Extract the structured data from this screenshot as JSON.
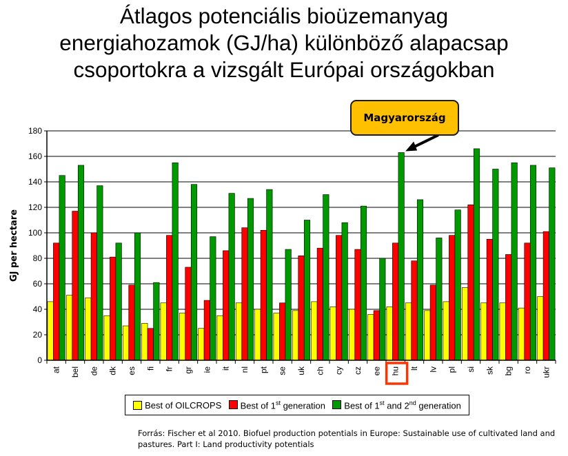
{
  "title_lines": [
    "Átlagos potenciális bioüzemanyag",
    "energiahozamok (GJ/ha) különböző alapacsap",
    "csoportokra a vizsgált Európai országokban"
  ],
  "callout": {
    "label": "Magyarország"
  },
  "source": "Forrás: Fischer et al 2010. Biofuel production potentials in Europe: Sustainable use of cultivated land and pastures. Part I: Land productivity potentials",
  "colors": {
    "oilcrops": "#ffff00",
    "first_gen": "#ff0000",
    "first_second_gen": "#009900",
    "highlight": "#ff3300",
    "callout_fill": "#ffc000"
  },
  "legend": {
    "oilcrops": "Best of OILCROPS",
    "first_gen_prefix": "Best of 1",
    "first_gen_sup": "st",
    "first_gen_suffix": " generation",
    "second_gen_prefix": "Best of 1",
    "second_gen_sup1": "st",
    "second_gen_mid": " and 2",
    "second_gen_sup2": "nd",
    "second_gen_suffix": " generation"
  },
  "chart_data": {
    "type": "bar",
    "title": "Átlagos potenciális bioüzemanyag energiahozamok (GJ/ha) különböző alapacsap csoportokra a vizsgált Európai országokban",
    "xlabel": "",
    "ylabel": "GJ per hectare",
    "ylim": [
      0,
      180
    ],
    "yticks": [
      0,
      20,
      40,
      60,
      80,
      100,
      120,
      140,
      160,
      180
    ],
    "grid": true,
    "legend_position": "bottom",
    "highlight_category": "hu",
    "categories": [
      "at",
      "bel",
      "de",
      "dk",
      "es",
      "fi",
      "fr",
      "gr",
      "ie",
      "it",
      "nl",
      "pt",
      "se",
      "uk",
      "ch",
      "cy",
      "cz",
      "ee",
      "hu",
      "lt",
      "lv",
      "pl",
      "si",
      "sk",
      "bg",
      "ro",
      "ukr"
    ],
    "series": [
      {
        "name": "Best of OILCROPS",
        "values": [
          46,
          51,
          49,
          35,
          27,
          29,
          45,
          37,
          25,
          35,
          45,
          40,
          37,
          39,
          46,
          42,
          40,
          36,
          42,
          45,
          39,
          46,
          57,
          45,
          45,
          41,
          50
        ]
      },
      {
        "name": "Best of 1st generation",
        "values": [
          92,
          117,
          100,
          81,
          59,
          25,
          98,
          73,
          47,
          86,
          104,
          102,
          45,
          82,
          88,
          98,
          87,
          39,
          92,
          78,
          59,
          98,
          122,
          95,
          83,
          92,
          101
        ]
      },
      {
        "name": "Best of 1st and 2nd generation",
        "values": [
          145,
          153,
          137,
          92,
          100,
          61,
          155,
          138,
          97,
          131,
          127,
          134,
          87,
          110,
          130,
          108,
          121,
          80,
          163,
          126,
          96,
          118,
          166,
          150,
          155,
          153,
          151
        ]
      }
    ]
  }
}
